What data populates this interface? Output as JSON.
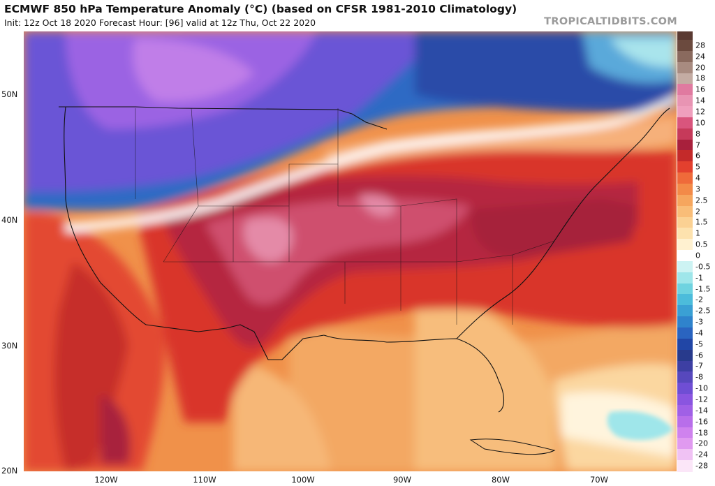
{
  "header": {
    "title": "ECMWF 850 hPa Temperature Anomaly (°C) (based on CFSR 1981-2010 Climatology)",
    "subtitle": "Init: 12z Oct 18 2020   Forecast Hour: [96]   valid at 12z Thu, Oct 22 2020",
    "brand": "TROPICALTIDBITS.COM"
  },
  "axes": {
    "lat_labels": [
      "50N",
      "40N",
      "30N",
      "20N"
    ],
    "lon_labels": [
      "120W",
      "110W",
      "100W",
      "90W",
      "80W",
      "70W"
    ]
  },
  "colorbar": {
    "labels": [
      "28",
      "24",
      "20",
      "18",
      "16",
      "14",
      "12",
      "10",
      "8",
      "7",
      "6",
      "5",
      "4",
      "3",
      "2.5",
      "2",
      "1.5",
      "1",
      "0.5",
      "0",
      "-0.5",
      "-1",
      "-1.5",
      "-2",
      "-2.5",
      "-3",
      "-4",
      "-5",
      "-6",
      "-7",
      "-8",
      "-10",
      "-12",
      "-14",
      "-16",
      "-18",
      "-20",
      "-24",
      "-28"
    ],
    "colors": [
      "#6b4a3e",
      "#8a6a5e",
      "#a88b80",
      "#c4aca3",
      "#e07aa0",
      "#e894b3",
      "#ef9fbd",
      "#d9557d",
      "#c63a5a",
      "#a8203c",
      "#c42a2a",
      "#e3402e",
      "#ef6a3a",
      "#f38a48",
      "#f6a65e",
      "#f9bd78",
      "#fbd193",
      "#fde2ae",
      "#fff1d0",
      "#ffffff",
      "#cdf3f3",
      "#9fe6ea",
      "#6fd3e0",
      "#4cbcdb",
      "#3aa0d4",
      "#2f83cc",
      "#2a64c0",
      "#2146a6",
      "#283a8c",
      "#3d3fa3",
      "#5748bd",
      "#6f4ed4",
      "#8a55e0",
      "#a060e6",
      "#b86eea",
      "#cf82ee",
      "#e09af0",
      "#f0c2f4",
      "#fbe6f8"
    ]
  }
}
